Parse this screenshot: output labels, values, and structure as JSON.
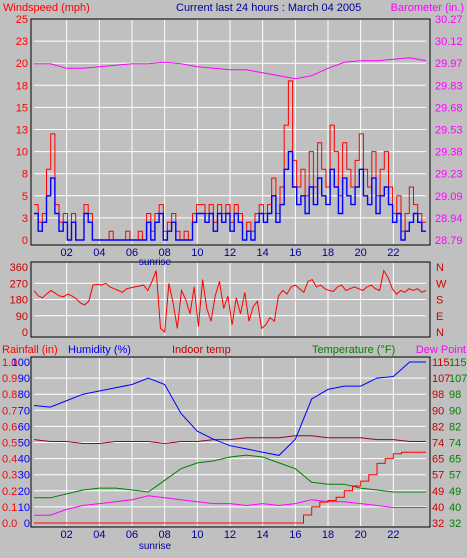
{
  "title": "Current last 24 hours : March 04 2005",
  "x_ticks": [
    "02",
    "04",
    "06",
    "08",
    "10",
    "12",
    "14",
    "16",
    "18",
    "20",
    "22"
  ],
  "sunrise_label": "sunrise",
  "colors": {
    "background": "#c0c0c0",
    "gridline": "#ffffff",
    "red": "#ff0000",
    "darkred": "#cc0000",
    "blue": "#0000ff",
    "magenta": "#ff00ff",
    "green": "#008000",
    "maroon": "#990033",
    "navy": "#000099"
  },
  "chart_data": [
    {
      "type": "line",
      "panel": "wind",
      "left_axis_label": "Windspeed (mph)",
      "right_axis_label": "Barometer (in.)",
      "left_ticks": [
        "25",
        "23",
        "20",
        "18",
        "15",
        "13",
        "10",
        "8",
        "5",
        "3",
        "0"
      ],
      "right_ticks": [
        "30.27",
        "30.12",
        "29.97",
        "29.83",
        "29.68",
        "29.53",
        "29.38",
        "29.23",
        "29.09",
        "28.94",
        "28.79"
      ],
      "ylim": [
        0,
        25
      ],
      "ylim_right": [
        28.79,
        30.27
      ],
      "series": [
        {
          "role": "wind speed",
          "color": "blue",
          "values": [
            3,
            1,
            2,
            5,
            7,
            3,
            1,
            2,
            0,
            2,
            0,
            0,
            3,
            2,
            0,
            0,
            0,
            0,
            0,
            0,
            0,
            0,
            0,
            0,
            0,
            0,
            0,
            2,
            0,
            2,
            3,
            0,
            1,
            2,
            0,
            0,
            0,
            0,
            2,
            3,
            3,
            2,
            3,
            1,
            3,
            2,
            3,
            1,
            3,
            2,
            0,
            1,
            0,
            2,
            3,
            2,
            3,
            5,
            2,
            4,
            8,
            10,
            6,
            4,
            5,
            3,
            6,
            4,
            7,
            5,
            4,
            8,
            6,
            3,
            7,
            5,
            4,
            6,
            8,
            5,
            4,
            7,
            3,
            5,
            6,
            4,
            2,
            3,
            0,
            1,
            2,
            3,
            2,
            1
          ]
        },
        {
          "role": "wind gust",
          "color": "red",
          "values": [
            4,
            2,
            3,
            8,
            12,
            4,
            2,
            3,
            0,
            3,
            0,
            0,
            4,
            3,
            0,
            0,
            0,
            0,
            1,
            0,
            0,
            0,
            1,
            0,
            0,
            1,
            0,
            3,
            1,
            3,
            4,
            1,
            2,
            3,
            1,
            0,
            1,
            0,
            3,
            4,
            4,
            3,
            4,
            2,
            4,
            3,
            4,
            2,
            4,
            3,
            0,
            2,
            1,
            3,
            4,
            3,
            4,
            7,
            3,
            6,
            13,
            18,
            9,
            6,
            8,
            5,
            10,
            6,
            11,
            8,
            6,
            13,
            10,
            5,
            11,
            8,
            6,
            9,
            12,
            8,
            6,
            10,
            5,
            8,
            10,
            6,
            3,
            5,
            1,
            3,
            6,
            4,
            3,
            2
          ]
        },
        {
          "role": "barometer",
          "color": "magenta",
          "axis": "right",
          "x": [
            0,
            1,
            2,
            3,
            4,
            5,
            6,
            7,
            8,
            9,
            10,
            11,
            12,
            13,
            14,
            15,
            16,
            17,
            18,
            19,
            20,
            21,
            22,
            23,
            24
          ],
          "values": [
            29.97,
            29.97,
            29.94,
            29.94,
            29.95,
            29.96,
            29.97,
            29.97,
            29.98,
            29.97,
            29.95,
            29.94,
            29.93,
            29.93,
            29.91,
            29.89,
            29.87,
            29.89,
            29.94,
            29.98,
            29.99,
            29.99,
            30.0,
            30.01,
            29.99
          ]
        }
      ]
    },
    {
      "type": "line",
      "panel": "wind direction",
      "left_ticks": [
        "360",
        "270",
        "180",
        "90",
        "0"
      ],
      "right_ticks": [
        "N",
        "W",
        "S",
        "E",
        "N"
      ],
      "ylim": [
        0,
        360
      ],
      "series": [
        {
          "role": "wind direction",
          "color": "red",
          "values": [
            230,
            200,
            190,
            210,
            230,
            215,
            200,
            195,
            210,
            200,
            185,
            160,
            150,
            170,
            260,
            265,
            260,
            270,
            250,
            240,
            230,
            220,
            240,
            245,
            250,
            255,
            260,
            230,
            280,
            340,
            20,
            0,
            270,
            160,
            20,
            230,
            180,
            100,
            250,
            30,
            290,
            130,
            60,
            200,
            280,
            130,
            200,
            40,
            190,
            100,
            220,
            60,
            140,
            170,
            20,
            40,
            80,
            60,
            200,
            230,
            210,
            250,
            260,
            240,
            220,
            280,
            290,
            250,
            260,
            240,
            230,
            225,
            250,
            260,
            230,
            240,
            250,
            240,
            230,
            250,
            260,
            240,
            230,
            340,
            300,
            240,
            210,
            230,
            220,
            240,
            230,
            240,
            220,
            230
          ]
        }
      ]
    },
    {
      "type": "line",
      "panel": "humidity and temperature",
      "header_labels": {
        "rainfall": "Rainfall (in)",
        "humidity": "Humidity (%)",
        "indoor": "Indoor temp",
        "temperature": "Temperature (°F)",
        "dew_point": "Dew Point"
      },
      "rain_ticks": [
        "1.0",
        "0.9",
        "0.8",
        "0.7",
        "0.6",
        "0.5",
        "0.4",
        "0.3",
        "0.2",
        "0.1",
        "0.0"
      ],
      "humidity_ticks": [
        "100",
        "90",
        "80",
        "70",
        "60",
        "50",
        "40",
        "30",
        "20",
        "10",
        "0"
      ],
      "temperature_ticks": [
        "115",
        "107",
        "98",
        "90",
        "82",
        "74",
        "65",
        "57",
        "49",
        "40",
        "32"
      ],
      "dew_ticks": [
        "115",
        "107",
        "98",
        "90",
        "82",
        "74",
        "65",
        "57",
        "49",
        "40",
        "32"
      ],
      "humidity_range": [
        0,
        100
      ],
      "temperature_range": [
        32,
        115
      ],
      "series": [
        {
          "role": "humidity",
          "color": "blue",
          "axis": "humidity",
          "x": [
            0,
            1,
            2,
            3,
            4,
            5,
            6,
            7,
            8,
            9,
            10,
            11,
            12,
            13,
            14,
            15,
            16,
            17,
            18,
            19,
            20,
            21,
            22,
            23,
            24
          ],
          "values": [
            73,
            72,
            76,
            80,
            82,
            84,
            86,
            90,
            86,
            68,
            57,
            52,
            48,
            46,
            44,
            42,
            52,
            77,
            83,
            85,
            85,
            90,
            91,
            100,
            100
          ]
        },
        {
          "role": "indoor temp",
          "color": "maroon",
          "axis": "temperature",
          "x": [
            0,
            1,
            2,
            3,
            4,
            5,
            6,
            7,
            8,
            9,
            10,
            11,
            12,
            13,
            14,
            15,
            16,
            17,
            18,
            19,
            20,
            21,
            22,
            23,
            24
          ],
          "values": [
            75,
            74,
            74,
            73,
            73,
            74,
            74,
            74,
            73,
            74,
            74,
            75,
            75,
            76,
            76,
            76,
            77,
            77,
            76,
            76,
            76,
            75,
            75,
            74,
            74
          ]
        },
        {
          "role": "temperature",
          "color": "green",
          "axis": "temperature",
          "x": [
            0,
            1,
            2,
            3,
            4,
            5,
            6,
            7,
            8,
            9,
            10,
            11,
            12,
            13,
            14,
            15,
            16,
            17,
            18,
            19,
            20,
            21,
            22,
            23,
            24
          ],
          "values": [
            45,
            45,
            47,
            49,
            50,
            50,
            49,
            48,
            54,
            60,
            63,
            64,
            66,
            67,
            66,
            63,
            60,
            53,
            52,
            52,
            50,
            49,
            48,
            48,
            48
          ]
        },
        {
          "role": "dew point",
          "color": "magenta",
          "axis": "temperature",
          "x": [
            0,
            1,
            2,
            3,
            4,
            5,
            6,
            7,
            8,
            9,
            10,
            11,
            12,
            13,
            14,
            15,
            16,
            17,
            18,
            19,
            20,
            21,
            22,
            23,
            24
          ],
          "values": [
            36,
            36,
            39,
            41,
            42,
            43,
            44,
            46,
            45,
            44,
            43,
            42,
            42,
            41,
            42,
            41,
            42,
            44,
            43,
            43,
            42,
            41,
            40,
            40,
            40
          ]
        },
        {
          "role": "rainfall",
          "color": "red",
          "axis": "rain",
          "x": [
            0,
            16,
            16.5,
            17,
            17.5,
            18,
            18.5,
            19,
            19.5,
            20,
            20.5,
            21,
            21.5,
            22,
            22.5,
            24
          ],
          "values": [
            0,
            0,
            0.05,
            0.1,
            0.13,
            0.14,
            0.16,
            0.2,
            0.23,
            0.26,
            0.3,
            0.37,
            0.4,
            0.43,
            0.44,
            0.44
          ]
        }
      ]
    }
  ]
}
